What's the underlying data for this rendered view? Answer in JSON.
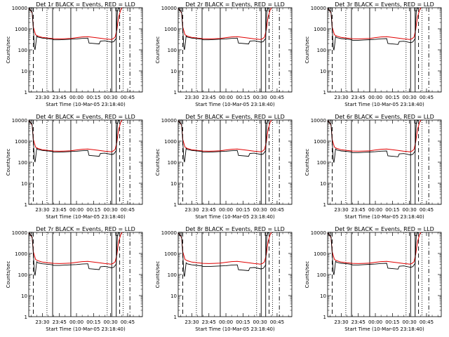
{
  "figure": {
    "background": "#ffffff",
    "event_color": "#000000",
    "lld_color": "#e00000"
  },
  "chart_data": {
    "type": "line",
    "layout": "3x3 grid",
    "yscale": "log",
    "ylim": [
      1,
      10000
    ],
    "y_ticks": [
      "1",
      "10",
      "100",
      "1000",
      "10000"
    ],
    "ylabel": "Counts/sec",
    "xlabel": "Start Time (10-Mar-05 23:18:40)",
    "xlim": [
      "23:18",
      "00:58"
    ],
    "x_tick_minutes": [
      -30,
      -15,
      0,
      15,
      30,
      45
    ],
    "x_tick_labels": [
      "23:30",
      "23:45",
      "00:00",
      "00:15",
      "00:30",
      "00:45"
    ],
    "markers": {
      "solid": [
        -21,
        -5,
        31,
        35
      ],
      "dashed": [
        -38,
        38
      ],
      "dotted": [
        -26,
        27,
        41
      ],
      "dashdot": [
        47
      ]
    },
    "lld_series": {
      "name": "LLD",
      "x": [
        -42,
        -40.5,
        -39,
        -38,
        -36,
        -34,
        -30,
        -25,
        -20,
        -15,
        -10,
        -5,
        0,
        5,
        10,
        15,
        20,
        25,
        28,
        30,
        32,
        34,
        35.5,
        37,
        39,
        40
      ],
      "y": [
        9000,
        8000,
        5500,
        1200,
        520,
        450,
        390,
        360,
        340,
        330,
        340,
        350,
        380,
        410,
        420,
        390,
        360,
        330,
        320,
        310,
        330,
        400,
        900,
        3500,
        8000,
        10000
      ]
    },
    "event_series_base": {
      "name": "Events",
      "x": [
        -42,
        -40.5,
        -39,
        -38,
        -37,
        -36.5,
        -36,
        -35,
        -34,
        -32,
        -30,
        -25,
        -21,
        -20,
        -15,
        -10,
        -5,
        0,
        5,
        10,
        11,
        20,
        21,
        25,
        28,
        31,
        33,
        34,
        35,
        35.5,
        36,
        37,
        38
      ],
      "y": [
        9000,
        8000,
        6000,
        1000,
        130,
        100,
        150,
        450,
        400,
        380,
        360,
        340,
        320,
        300,
        300,
        310,
        320,
        330,
        350,
        360,
        210,
        190,
        260,
        270,
        250,
        230,
        250,
        300,
        350,
        2000,
        7000,
        9500,
        10000
      ]
    },
    "panels": [
      {
        "title": "Det 1r BLACK = Events, RED = LLD",
        "event_scale": 1.0
      },
      {
        "title": "Det 2r BLACK = Events, RED = LLD",
        "event_scale": 1.0
      },
      {
        "title": "Det 3r BLACK = Events, RED = LLD",
        "event_scale": 0.95
      },
      {
        "title": "Det 4r BLACK = Events, RED = LLD",
        "event_scale": 1.0
      },
      {
        "title": "Det 5r BLACK = Events, RED = LLD",
        "event_scale": 1.0
      },
      {
        "title": "Det 6r BLACK = Events, RED = LLD",
        "event_scale": 0.95
      },
      {
        "title": "Det 7r BLACK = Events, RED = LLD",
        "event_scale": 0.9
      },
      {
        "title": "Det 8r BLACK = Events, RED = LLD",
        "event_scale": 0.8
      },
      {
        "title": "Det 9r BLACK = Events, RED = LLD",
        "event_scale": 0.95
      }
    ]
  }
}
